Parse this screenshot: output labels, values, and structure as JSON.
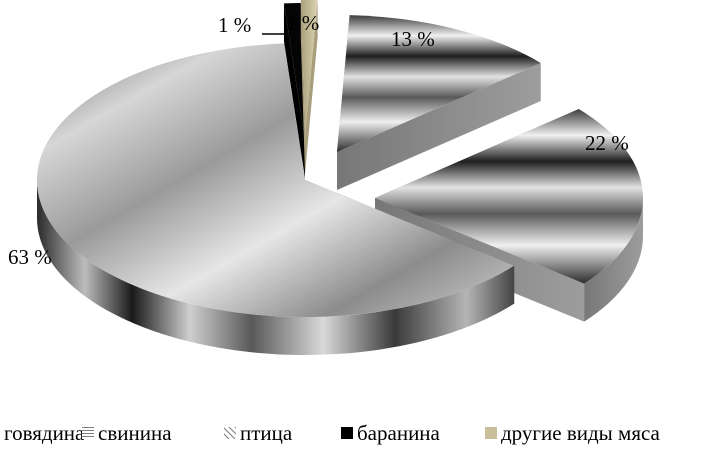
{
  "chart_data": {
    "type": "pie",
    "title": "",
    "categories": [
      "говядина",
      "свинина",
      "птица",
      "баранина",
      "другие виды мяса"
    ],
    "values": [
      13,
      22,
      63,
      1,
      1
    ],
    "value_labels": [
      "13 %",
      "22 %",
      "63 %",
      "1 %",
      "1 %"
    ],
    "legend": {
      "placement": "bottom",
      "entries": [
        "говядина",
        "свинина",
        "птица",
        "баранина",
        "другие виды мяса"
      ]
    },
    "style": "3d-exploded",
    "colors": {
      "говядина": "#8a8a8a",
      "свинина": "#6e6e6e",
      "птица": "#a8a8a8",
      "баранина": "#000000",
      "другие виды мяса": "#c9bf9c"
    }
  }
}
